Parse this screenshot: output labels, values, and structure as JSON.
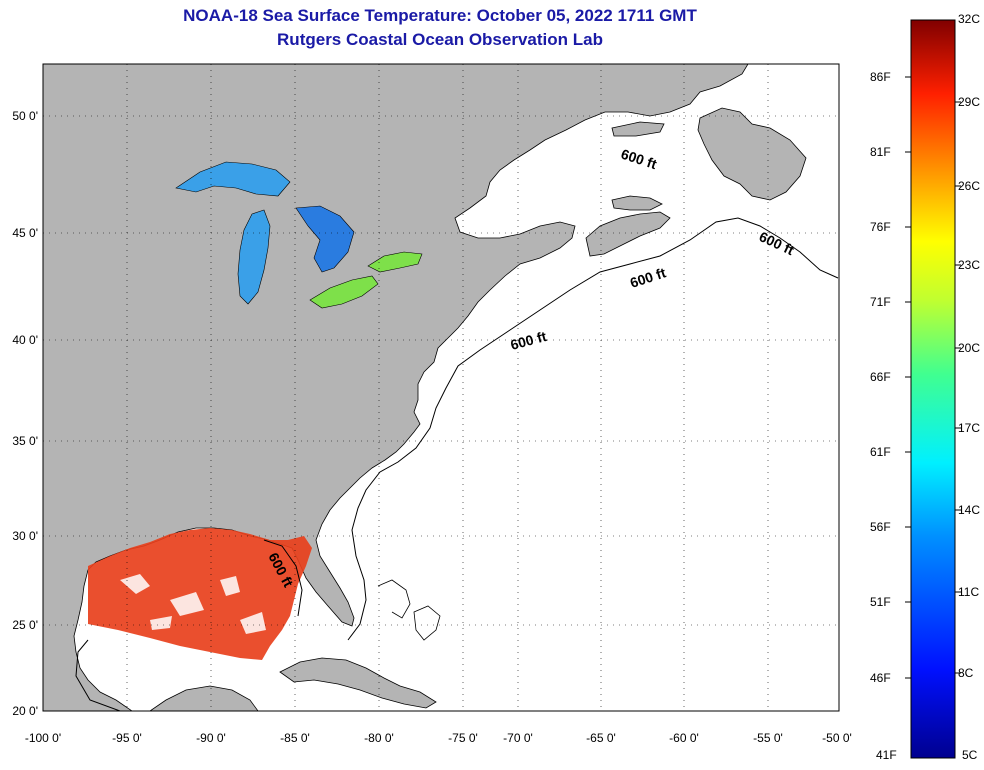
{
  "title_line1": "NOAA-18 Sea Surface Temperature:  October 05, 2022 1711 GMT",
  "title_line2": "Rutgers Coastal Ocean Observation Lab",
  "lon_ticks": [
    "-100 0'",
    "-95 0'",
    "-90 0'",
    "-85 0'",
    "-80 0'",
    "-75 0'",
    "-70 0'",
    "-65 0'",
    "-60 0'",
    "-55 0'",
    "-50 0'"
  ],
  "lat_ticks": [
    "20 0'",
    "25 0'",
    "30 0'",
    "35 0'",
    "40 0'",
    "45 0'",
    "50 0'"
  ],
  "contour_label": "600 ft",
  "colorbar": {
    "fahrenheit": [
      "86F",
      "81F",
      "76F",
      "71F",
      "66F",
      "61F",
      "56F",
      "51F",
      "46F",
      "41F"
    ],
    "celsius": [
      "32C",
      "29C",
      "26C",
      "23C",
      "20C",
      "17C",
      "14C",
      "11C",
      "8C",
      "5C"
    ]
  },
  "colors": {
    "land": "#b4b4b4",
    "ocean": "#ffffff",
    "title": "#1a1aa6",
    "gulf_sst": "#e8401c",
    "lake_erie": "#7ee04a",
    "lake_michigan": "#3aa0e8"
  }
}
